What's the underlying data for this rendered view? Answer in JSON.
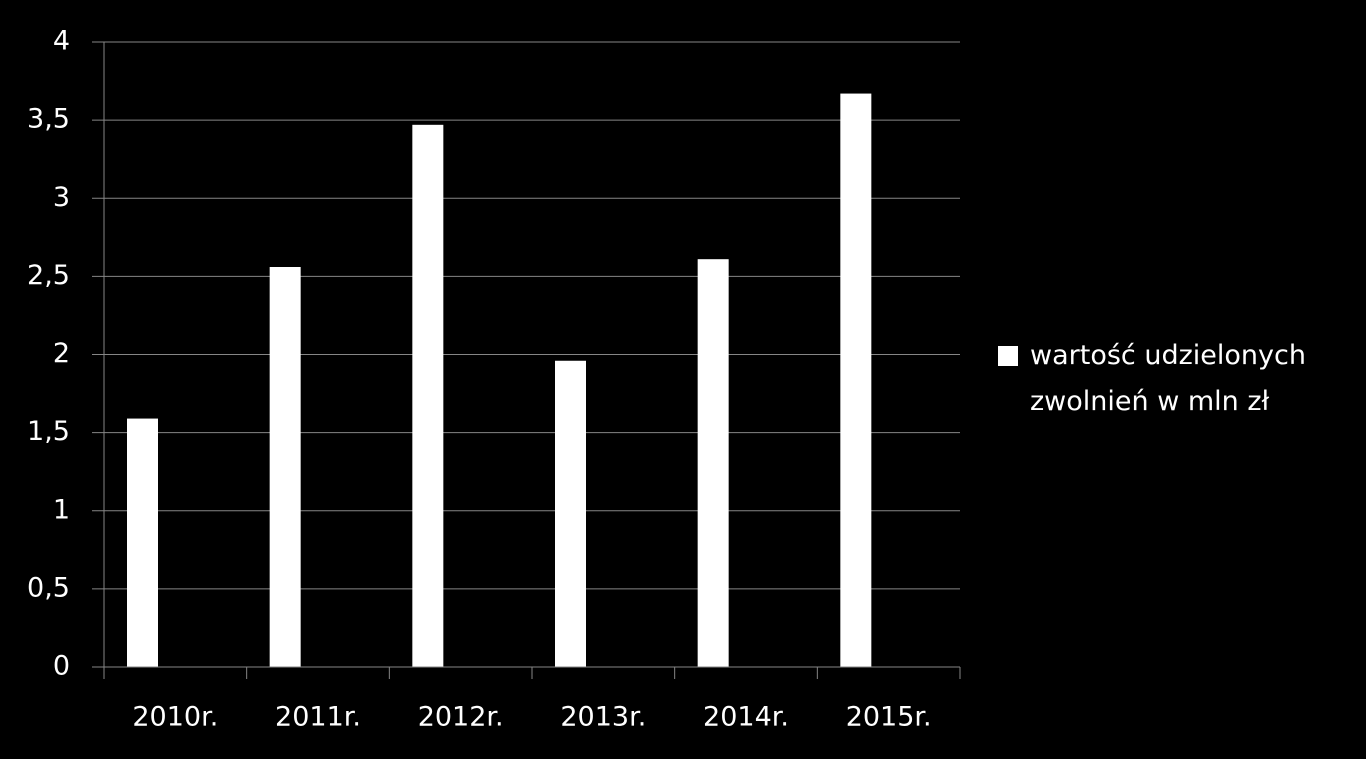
{
  "chart_data": {
    "type": "bar",
    "categories": [
      "2010r.",
      "2011r.",
      "2012r.",
      "2013r.",
      "2014r.",
      "2015r."
    ],
    "series": [
      {
        "name": "wartość udzielonych zwolnień w mln zł",
        "color": "#ffffff",
        "values": [
          1.59,
          2.56,
          3.47,
          1.96,
          2.61,
          3.67
        ]
      }
    ],
    "ylim": [
      0,
      4
    ],
    "yticks": [
      0,
      {
        "value": 0.5,
        "label": "0,5"
      },
      1,
      {
        "value": 1.5,
        "label": "1,5"
      },
      2,
      {
        "value": 2.5,
        "label": "2,5"
      },
      3,
      {
        "value": 3.5,
        "label": "3,5"
      },
      4
    ],
    "grid": true,
    "legend": "right"
  }
}
